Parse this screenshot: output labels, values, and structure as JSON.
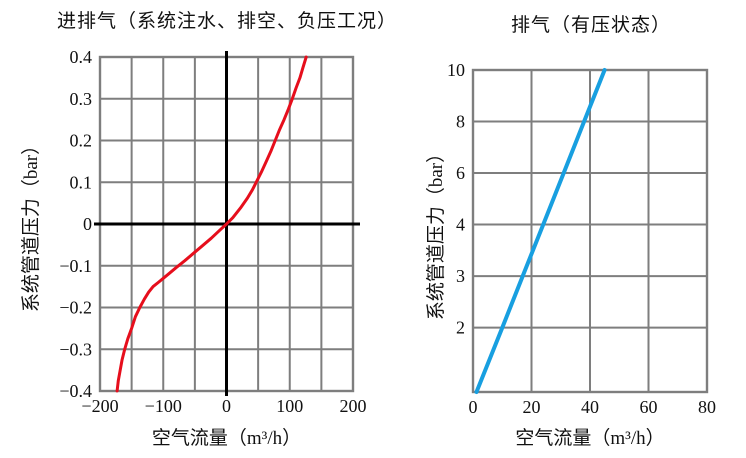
{
  "page": {
    "background": "#ffffff"
  },
  "chart_data": [
    {
      "type": "line",
      "title": "进排气（系统注水、排空、负压工况）",
      "xlabel": "空气流量（m³/h）",
      "ylabel": "系统管道压力（bar）",
      "xlim": [
        -200,
        200
      ],
      "ylim": [
        -0.4,
        0.4
      ],
      "grid": true,
      "legend": "none",
      "grid_color": "#7e7e7e",
      "axis_color": "#000000",
      "x_scale": [
        [
          -200,
          0
        ],
        [
          200,
          1
        ]
      ],
      "y_scale": [
        [
          -0.4,
          1
        ],
        [
          0.4,
          0
        ]
      ],
      "x_gridlines": [
        -200,
        -150,
        -100,
        -50,
        0,
        50,
        100,
        150,
        200
      ],
      "y_gridlines": [
        -0.4,
        -0.3,
        -0.2,
        -0.1,
        0,
        0.1,
        0.2,
        0.3,
        0.4
      ],
      "x_ticks": [
        {
          "v": -200,
          "label": "−200"
        },
        {
          "v": -100,
          "label": "−100"
        },
        {
          "v": 0,
          "label": "0"
        },
        {
          "v": 100,
          "label": "100"
        },
        {
          "v": 200,
          "label": "200"
        }
      ],
      "y_ticks": [
        {
          "v": 0.4,
          "label": "0.4"
        },
        {
          "v": 0.3,
          "label": "0.3"
        },
        {
          "v": 0.2,
          "label": "0.2"
        },
        {
          "v": 0.1,
          "label": "0.1"
        },
        {
          "v": 0,
          "label": "0"
        },
        {
          "v": -0.1,
          "label": "−0.1"
        },
        {
          "v": -0.2,
          "label": "−0.2"
        },
        {
          "v": -0.3,
          "label": "−0.3"
        },
        {
          "v": -0.4,
          "label": "−0.4"
        }
      ],
      "axis_lines": [
        {
          "axis": "x",
          "v": 0
        },
        {
          "axis": "y",
          "v": 0
        }
      ],
      "series": [
        {
          "color": "#e60e1c",
          "width": 3,
          "points": [
            [
              -173,
              -0.4
            ],
            [
              -171,
              -0.375
            ],
            [
              -168,
              -0.35
            ],
            [
              -165,
              -0.325
            ],
            [
              -161,
              -0.3
            ],
            [
              -156,
              -0.275
            ],
            [
              -150,
              -0.25
            ],
            [
              -144,
              -0.222
            ],
            [
              -137,
              -0.2
            ],
            [
              -130,
              -0.18
            ],
            [
              -123,
              -0.163
            ],
            [
              -116,
              -0.15
            ],
            [
              -108,
              -0.14
            ],
            [
              -100,
              -0.13
            ],
            [
              -91,
              -0.119
            ],
            [
              -80,
              -0.105
            ],
            [
              -66,
              -0.088
            ],
            [
              -52,
              -0.07
            ],
            [
              -38,
              -0.052
            ],
            [
              -24,
              -0.034
            ],
            [
              -10,
              -0.014
            ],
            [
              0,
              0
            ],
            [
              10,
              0.015
            ],
            [
              22,
              0.038
            ],
            [
              33,
              0.062
            ],
            [
              41,
              0.082
            ],
            [
              47,
              0.1
            ],
            [
              55,
              0.124
            ],
            [
              63,
              0.15
            ],
            [
              70,
              0.174
            ],
            [
              77,
              0.2
            ],
            [
              84,
              0.226
            ],
            [
              91,
              0.25
            ],
            [
              98,
              0.276
            ],
            [
              104,
              0.3
            ],
            [
              110,
              0.326
            ],
            [
              116,
              0.35
            ],
            [
              121,
              0.375
            ],
            [
              126,
              0.4
            ]
          ]
        }
      ]
    },
    {
      "type": "line",
      "title": "排气（有压状态）",
      "xlabel": "空气流量（m³/h）",
      "ylabel": "系统管道压力（bar）",
      "xlim": [
        0,
        80
      ],
      "ylim": [
        1.3,
        10
      ],
      "grid": true,
      "legend": "none",
      "grid_color": "#7e7e7e",
      "axis_color": "#000000",
      "x_scale": [
        [
          0,
          0
        ],
        [
          80,
          1
        ]
      ],
      "y_scale": [
        [
          1.3,
          1
        ],
        [
          2,
          0.8
        ],
        [
          3,
          0.64
        ],
        [
          4,
          0.48
        ],
        [
          6,
          0.32
        ],
        [
          8,
          0.16
        ],
        [
          10,
          0
        ]
      ],
      "x_gridlines": [
        0,
        20,
        40,
        60,
        80
      ],
      "y_gridlines": [
        2,
        3,
        4,
        6,
        8,
        10
      ],
      "x_ticks": [
        {
          "v": 0,
          "label": "0"
        },
        {
          "v": 20,
          "label": "20"
        },
        {
          "v": 40,
          "label": "40"
        },
        {
          "v": 60,
          "label": "60"
        },
        {
          "v": 80,
          "label": "80"
        }
      ],
      "y_ticks": [
        {
          "v": 10,
          "label": "10"
        },
        {
          "v": 8,
          "label": "8"
        },
        {
          "v": 6,
          "label": "6"
        },
        {
          "v": 4,
          "label": "4"
        },
        {
          "v": 3,
          "label": "3"
        },
        {
          "v": 2,
          "label": "2"
        }
      ],
      "axis_lines": [],
      "series": [
        {
          "color": "#189fe0",
          "width": 4,
          "points": [
            [
              1.2,
              1.3
            ],
            [
              10,
              2
            ],
            [
              17,
              3
            ],
            [
              24,
              4
            ],
            [
              31,
              6
            ],
            [
              38,
              8
            ],
            [
              45,
              10
            ]
          ]
        }
      ]
    }
  ]
}
